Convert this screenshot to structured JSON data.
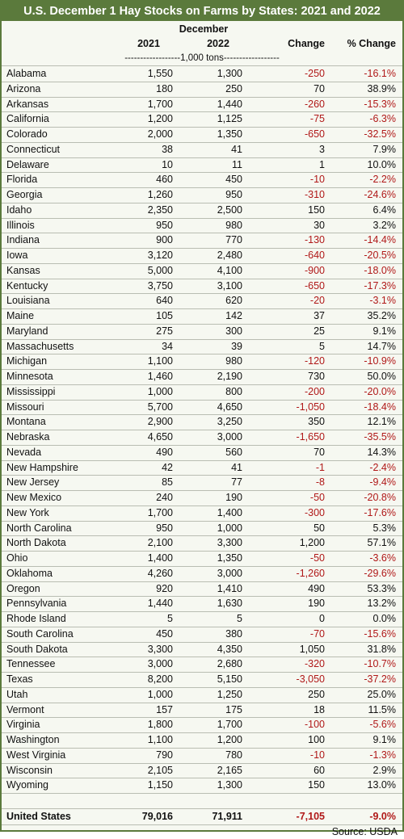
{
  "header": {
    "title": "U.S. December 1 Hay Stocks on Farms by States: 2021 and 2022",
    "group": "December",
    "columns": [
      "",
      "2021",
      "2022",
      "Change",
      "% Change"
    ],
    "units": "------------------1,000 tons------------------"
  },
  "table": {
    "rows": [
      [
        "Alabama",
        "1,550",
        "1,300",
        "-250",
        "-16.1%"
      ],
      [
        "Arizona",
        "180",
        "250",
        "70",
        "38.9%"
      ],
      [
        "Arkansas",
        "1,700",
        "1,440",
        "-260",
        "-15.3%"
      ],
      [
        "California",
        "1,200",
        "1,125",
        "-75",
        "-6.3%"
      ],
      [
        "Colorado",
        "2,000",
        "1,350",
        "-650",
        "-32.5%"
      ],
      [
        "Connecticut",
        "38",
        "41",
        "3",
        "7.9%"
      ],
      [
        "Delaware",
        "10",
        "11",
        "1",
        "10.0%"
      ],
      [
        "Florida",
        "460",
        "450",
        "-10",
        "-2.2%"
      ],
      [
        "Georgia",
        "1,260",
        "950",
        "-310",
        "-24.6%"
      ],
      [
        "Idaho",
        "2,350",
        "2,500",
        "150",
        "6.4%"
      ],
      [
        "Illinois",
        "950",
        "980",
        "30",
        "3.2%"
      ],
      [
        "Indiana",
        "900",
        "770",
        "-130",
        "-14.4%"
      ],
      [
        "Iowa",
        "3,120",
        "2,480",
        "-640",
        "-20.5%"
      ],
      [
        "Kansas",
        "5,000",
        "4,100",
        "-900",
        "-18.0%"
      ],
      [
        "Kentucky",
        "3,750",
        "3,100",
        "-650",
        "-17.3%"
      ],
      [
        "Louisiana",
        "640",
        "620",
        "-20",
        "-3.1%"
      ],
      [
        "Maine",
        "105",
        "142",
        "37",
        "35.2%"
      ],
      [
        "Maryland",
        "275",
        "300",
        "25",
        "9.1%"
      ],
      [
        "Massachusetts",
        "34",
        "39",
        "5",
        "14.7%"
      ],
      [
        "Michigan",
        "1,100",
        "980",
        "-120",
        "-10.9%"
      ],
      [
        "Minnesota",
        "1,460",
        "2,190",
        "730",
        "50.0%"
      ],
      [
        "Mississippi",
        "1,000",
        "800",
        "-200",
        "-20.0%"
      ],
      [
        "Missouri",
        "5,700",
        "4,650",
        "-1,050",
        "-18.4%"
      ],
      [
        "Montana",
        "2,900",
        "3,250",
        "350",
        "12.1%"
      ],
      [
        "Nebraska",
        "4,650",
        "3,000",
        "-1,650",
        "-35.5%"
      ],
      [
        "Nevada",
        "490",
        "560",
        "70",
        "14.3%"
      ],
      [
        "New Hampshire",
        "42",
        "41",
        "-1",
        "-2.4%"
      ],
      [
        "New Jersey",
        "85",
        "77",
        "-8",
        "-9.4%"
      ],
      [
        "New Mexico",
        "240",
        "190",
        "-50",
        "-20.8%"
      ],
      [
        "New York",
        "1,700",
        "1,400",
        "-300",
        "-17.6%"
      ],
      [
        "North Carolina",
        "950",
        "1,000",
        "50",
        "5.3%"
      ],
      [
        "North Dakota",
        "2,100",
        "3,300",
        "1,200",
        "57.1%"
      ],
      [
        "Ohio",
        "1,400",
        "1,350",
        "-50",
        "-3.6%"
      ],
      [
        "Oklahoma",
        "4,260",
        "3,000",
        "-1,260",
        "-29.6%"
      ],
      [
        "Oregon",
        "920",
        "1,410",
        "490",
        "53.3%"
      ],
      [
        "Pennsylvania",
        "1,440",
        "1,630",
        "190",
        "13.2%"
      ],
      [
        "Rhode Island",
        "5",
        "5",
        "0",
        "0.0%"
      ],
      [
        "South Carolina",
        "450",
        "380",
        "-70",
        "-15.6%"
      ],
      [
        "South Dakota",
        "3,300",
        "4,350",
        "1,050",
        "31.8%"
      ],
      [
        "Tennessee",
        "3,000",
        "2,680",
        "-320",
        "-10.7%"
      ],
      [
        "Texas",
        "8,200",
        "5,150",
        "-3,050",
        "-37.2%"
      ],
      [
        "Utah",
        "1,000",
        "1,250",
        "250",
        "25.0%"
      ],
      [
        "Vermont",
        "157",
        "175",
        "18",
        "11.5%"
      ],
      [
        "Virginia",
        "1,800",
        "1,700",
        "-100",
        "-5.6%"
      ],
      [
        "Washington",
        "1,100",
        "1,200",
        "100",
        "9.1%"
      ],
      [
        "West Virginia",
        "790",
        "780",
        "-10",
        "-1.3%"
      ],
      [
        "Wisconsin",
        "2,105",
        "2,165",
        "60",
        "2.9%"
      ],
      [
        "Wyoming",
        "1,150",
        "1,300",
        "150",
        "13.0%"
      ]
    ],
    "total": [
      "United States",
      "79,016",
      "71,911",
      "-7,105",
      "-9.0%"
    ]
  },
  "footer": {
    "source": "Source: USDA"
  }
}
